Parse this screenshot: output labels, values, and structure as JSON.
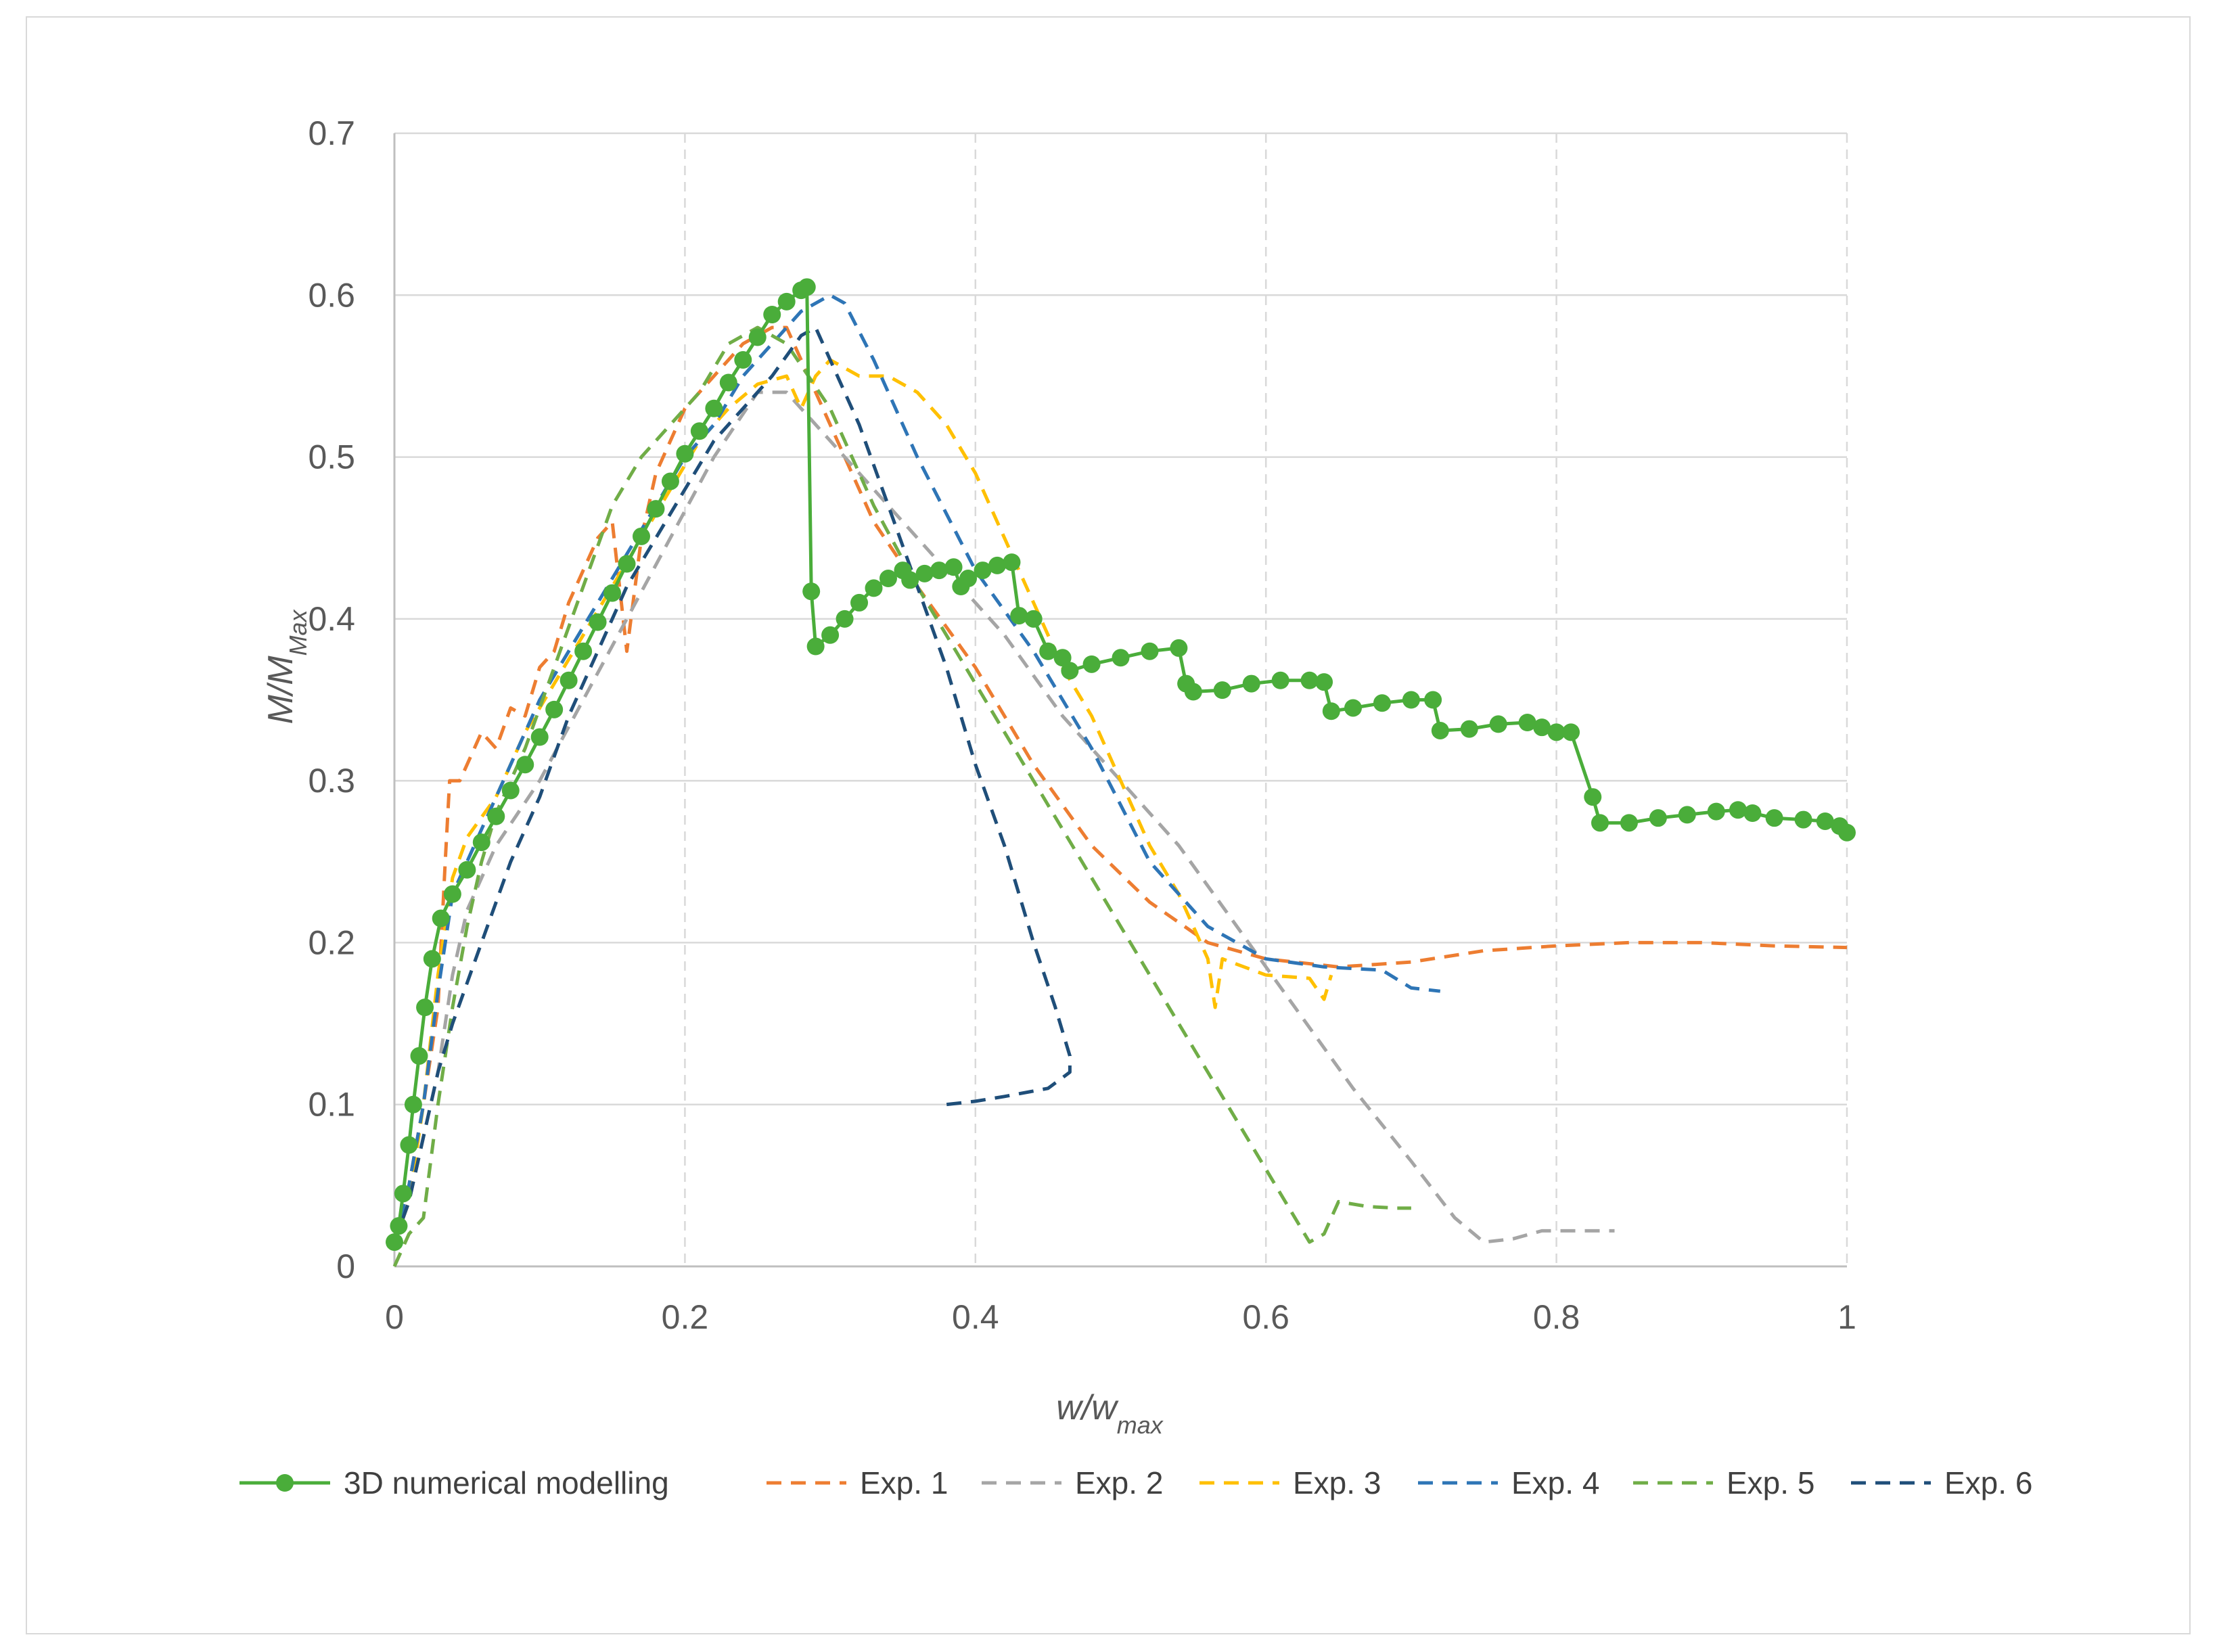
{
  "chart_data": {
    "type": "line",
    "title": "",
    "xlabel": {
      "main": "w/w",
      "sub": "max"
    },
    "ylabel": {
      "main": "M/M",
      "sub": "Max"
    },
    "xlim": [
      0,
      1
    ],
    "ylim": [
      0,
      0.7
    ],
    "x_ticks": [
      "0",
      "0.2",
      "0.4",
      "0.6",
      "0.8",
      "1"
    ],
    "y_ticks": [
      "0",
      "0.1",
      "0.2",
      "0.3",
      "0.4",
      "0.5",
      "0.6",
      "0.7"
    ],
    "grid": {
      "x": "dashed",
      "y": "solid"
    },
    "legend_position": "bottom",
    "series": [
      {
        "name": "3D numerical modelling",
        "color": "#4aad3a",
        "style": "solid-markers",
        "points": [
          [
            0.0,
            0.015
          ],
          [
            0.003,
            0.025
          ],
          [
            0.006,
            0.045
          ],
          [
            0.01,
            0.075
          ],
          [
            0.013,
            0.1
          ],
          [
            0.017,
            0.13
          ],
          [
            0.021,
            0.16
          ],
          [
            0.026,
            0.19
          ],
          [
            0.032,
            0.215
          ],
          [
            0.04,
            0.23
          ],
          [
            0.05,
            0.245
          ],
          [
            0.06,
            0.262
          ],
          [
            0.07,
            0.278
          ],
          [
            0.08,
            0.294
          ],
          [
            0.09,
            0.31
          ],
          [
            0.1,
            0.327
          ],
          [
            0.11,
            0.344
          ],
          [
            0.12,
            0.362
          ],
          [
            0.13,
            0.38
          ],
          [
            0.14,
            0.398
          ],
          [
            0.15,
            0.416
          ],
          [
            0.16,
            0.434
          ],
          [
            0.17,
            0.451
          ],
          [
            0.18,
            0.468
          ],
          [
            0.19,
            0.485
          ],
          [
            0.2,
            0.502
          ],
          [
            0.21,
            0.516
          ],
          [
            0.22,
            0.53
          ],
          [
            0.23,
            0.546
          ],
          [
            0.24,
            0.56
          ],
          [
            0.25,
            0.574
          ],
          [
            0.26,
            0.588
          ],
          [
            0.27,
            0.596
          ],
          [
            0.28,
            0.603
          ],
          [
            0.284,
            0.605
          ],
          [
            0.287,
            0.417
          ],
          [
            0.29,
            0.383
          ],
          [
            0.3,
            0.39
          ],
          [
            0.31,
            0.4
          ],
          [
            0.32,
            0.41
          ],
          [
            0.33,
            0.419
          ],
          [
            0.34,
            0.425
          ],
          [
            0.35,
            0.43
          ],
          [
            0.355,
            0.424
          ],
          [
            0.365,
            0.428
          ],
          [
            0.375,
            0.43
          ],
          [
            0.385,
            0.432
          ],
          [
            0.39,
            0.42
          ],
          [
            0.395,
            0.425
          ],
          [
            0.405,
            0.43
          ],
          [
            0.415,
            0.433
          ],
          [
            0.425,
            0.435
          ],
          [
            0.43,
            0.402
          ],
          [
            0.44,
            0.4
          ],
          [
            0.45,
            0.38
          ],
          [
            0.46,
            0.376
          ],
          [
            0.465,
            0.368
          ],
          [
            0.48,
            0.372
          ],
          [
            0.5,
            0.376
          ],
          [
            0.52,
            0.38
          ],
          [
            0.54,
            0.382
          ],
          [
            0.545,
            0.36
          ],
          [
            0.55,
            0.355
          ],
          [
            0.57,
            0.356
          ],
          [
            0.59,
            0.36
          ],
          [
            0.61,
            0.362
          ],
          [
            0.63,
            0.362
          ],
          [
            0.64,
            0.361
          ],
          [
            0.645,
            0.343
          ],
          [
            0.66,
            0.345
          ],
          [
            0.68,
            0.348
          ],
          [
            0.7,
            0.35
          ],
          [
            0.715,
            0.35
          ],
          [
            0.72,
            0.331
          ],
          [
            0.74,
            0.332
          ],
          [
            0.76,
            0.335
          ],
          [
            0.78,
            0.336
          ],
          [
            0.79,
            0.333
          ],
          [
            0.8,
            0.33
          ],
          [
            0.81,
            0.33
          ],
          [
            0.825,
            0.29
          ],
          [
            0.83,
            0.274
          ],
          [
            0.85,
            0.274
          ],
          [
            0.87,
            0.277
          ],
          [
            0.89,
            0.279
          ],
          [
            0.91,
            0.281
          ],
          [
            0.925,
            0.282
          ],
          [
            0.935,
            0.28
          ],
          [
            0.95,
            0.277
          ],
          [
            0.97,
            0.276
          ],
          [
            0.985,
            0.275
          ],
          [
            0.995,
            0.272
          ],
          [
            1.0,
            0.268
          ]
        ]
      },
      {
        "name": "Exp. 1",
        "color": "#ed7d31",
        "style": "dashed",
        "points": [
          [
            0.0,
            0.015
          ],
          [
            0.01,
            0.05
          ],
          [
            0.02,
            0.1
          ],
          [
            0.03,
            0.16
          ],
          [
            0.035,
            0.25
          ],
          [
            0.038,
            0.3
          ],
          [
            0.045,
            0.3
          ],
          [
            0.05,
            0.31
          ],
          [
            0.06,
            0.33
          ],
          [
            0.07,
            0.32
          ],
          [
            0.08,
            0.345
          ],
          [
            0.09,
            0.34
          ],
          [
            0.1,
            0.37
          ],
          [
            0.11,
            0.38
          ],
          [
            0.12,
            0.41
          ],
          [
            0.14,
            0.45
          ],
          [
            0.15,
            0.46
          ],
          [
            0.16,
            0.38
          ],
          [
            0.17,
            0.45
          ],
          [
            0.18,
            0.49
          ],
          [
            0.2,
            0.53
          ],
          [
            0.22,
            0.55
          ],
          [
            0.24,
            0.57
          ],
          [
            0.26,
            0.58
          ],
          [
            0.27,
            0.58
          ],
          [
            0.28,
            0.56
          ],
          [
            0.3,
            0.52
          ],
          [
            0.33,
            0.46
          ],
          [
            0.36,
            0.42
          ],
          [
            0.4,
            0.37
          ],
          [
            0.44,
            0.31
          ],
          [
            0.48,
            0.26
          ],
          [
            0.52,
            0.225
          ],
          [
            0.56,
            0.2
          ],
          [
            0.6,
            0.19
          ],
          [
            0.65,
            0.185
          ],
          [
            0.7,
            0.188
          ],
          [
            0.75,
            0.195
          ],
          [
            0.8,
            0.198
          ],
          [
            0.85,
            0.2
          ],
          [
            0.9,
            0.2
          ],
          [
            0.95,
            0.198
          ],
          [
            1.0,
            0.197
          ]
        ]
      },
      {
        "name": "Exp. 2",
        "color": "#a5a5a5",
        "style": "dashed",
        "points": [
          [
            0.0,
            0.015
          ],
          [
            0.01,
            0.04
          ],
          [
            0.02,
            0.08
          ],
          [
            0.03,
            0.12
          ],
          [
            0.04,
            0.18
          ],
          [
            0.05,
            0.22
          ],
          [
            0.07,
            0.26
          ],
          [
            0.1,
            0.3
          ],
          [
            0.13,
            0.35
          ],
          [
            0.16,
            0.4
          ],
          [
            0.19,
            0.45
          ],
          [
            0.22,
            0.5
          ],
          [
            0.25,
            0.54
          ],
          [
            0.27,
            0.54
          ],
          [
            0.3,
            0.51
          ],
          [
            0.34,
            0.47
          ],
          [
            0.38,
            0.43
          ],
          [
            0.42,
            0.39
          ],
          [
            0.46,
            0.34
          ],
          [
            0.5,
            0.3
          ],
          [
            0.54,
            0.26
          ],
          [
            0.58,
            0.21
          ],
          [
            0.62,
            0.16
          ],
          [
            0.66,
            0.11
          ],
          [
            0.7,
            0.065
          ],
          [
            0.73,
            0.03
          ],
          [
            0.75,
            0.015
          ],
          [
            0.77,
            0.017
          ],
          [
            0.79,
            0.022
          ],
          [
            0.81,
            0.022
          ],
          [
            0.84,
            0.022
          ]
        ]
      },
      {
        "name": "Exp. 3",
        "color": "#ffc000",
        "style": "dashed",
        "points": [
          [
            0.0,
            0.015
          ],
          [
            0.01,
            0.04
          ],
          [
            0.02,
            0.1
          ],
          [
            0.03,
            0.18
          ],
          [
            0.04,
            0.24
          ],
          [
            0.05,
            0.265
          ],
          [
            0.07,
            0.29
          ],
          [
            0.09,
            0.33
          ],
          [
            0.11,
            0.36
          ],
          [
            0.13,
            0.39
          ],
          [
            0.15,
            0.42
          ],
          [
            0.17,
            0.45
          ],
          [
            0.19,
            0.48
          ],
          [
            0.21,
            0.51
          ],
          [
            0.23,
            0.53
          ],
          [
            0.25,
            0.545
          ],
          [
            0.27,
            0.55
          ],
          [
            0.28,
            0.53
          ],
          [
            0.29,
            0.55
          ],
          [
            0.3,
            0.56
          ],
          [
            0.32,
            0.55
          ],
          [
            0.34,
            0.55
          ],
          [
            0.36,
            0.54
          ],
          [
            0.38,
            0.52
          ],
          [
            0.4,
            0.49
          ],
          [
            0.42,
            0.45
          ],
          [
            0.44,
            0.41
          ],
          [
            0.46,
            0.37
          ],
          [
            0.48,
            0.34
          ],
          [
            0.5,
            0.3
          ],
          [
            0.52,
            0.26
          ],
          [
            0.54,
            0.23
          ],
          [
            0.55,
            0.21
          ],
          [
            0.56,
            0.19
          ],
          [
            0.565,
            0.16
          ],
          [
            0.57,
            0.19
          ],
          [
            0.6,
            0.18
          ],
          [
            0.63,
            0.178
          ],
          [
            0.64,
            0.165
          ],
          [
            0.645,
            0.18
          ]
        ]
      },
      {
        "name": "Exp. 4",
        "color": "#2e75b6",
        "style": "dashed",
        "points": [
          [
            0.0,
            0.015
          ],
          [
            0.01,
            0.05
          ],
          [
            0.02,
            0.1
          ],
          [
            0.03,
            0.17
          ],
          [
            0.04,
            0.23
          ],
          [
            0.06,
            0.27
          ],
          [
            0.08,
            0.31
          ],
          [
            0.1,
            0.35
          ],
          [
            0.12,
            0.38
          ],
          [
            0.14,
            0.41
          ],
          [
            0.16,
            0.44
          ],
          [
            0.18,
            0.47
          ],
          [
            0.2,
            0.5
          ],
          [
            0.22,
            0.52
          ],
          [
            0.24,
            0.55
          ],
          [
            0.26,
            0.57
          ],
          [
            0.28,
            0.59
          ],
          [
            0.3,
            0.6
          ],
          [
            0.31,
            0.595
          ],
          [
            0.33,
            0.56
          ],
          [
            0.36,
            0.5
          ],
          [
            0.4,
            0.43
          ],
          [
            0.44,
            0.38
          ],
          [
            0.48,
            0.32
          ],
          [
            0.52,
            0.25
          ],
          [
            0.56,
            0.21
          ],
          [
            0.6,
            0.19
          ],
          [
            0.64,
            0.185
          ],
          [
            0.68,
            0.183
          ],
          [
            0.7,
            0.172
          ],
          [
            0.72,
            0.17
          ]
        ]
      },
      {
        "name": "Exp. 5",
        "color": "#70ad47",
        "style": "dashed",
        "points": [
          [
            0.0,
            0.0
          ],
          [
            0.01,
            0.02
          ],
          [
            0.02,
            0.03
          ],
          [
            0.03,
            0.1
          ],
          [
            0.04,
            0.16
          ],
          [
            0.05,
            0.21
          ],
          [
            0.06,
            0.25
          ],
          [
            0.07,
            0.28
          ],
          [
            0.09,
            0.32
          ],
          [
            0.11,
            0.37
          ],
          [
            0.13,
            0.42
          ],
          [
            0.15,
            0.47
          ],
          [
            0.17,
            0.5
          ],
          [
            0.19,
            0.52
          ],
          [
            0.21,
            0.54
          ],
          [
            0.23,
            0.57
          ],
          [
            0.25,
            0.58
          ],
          [
            0.27,
            0.57
          ],
          [
            0.3,
            0.53
          ],
          [
            0.33,
            0.47
          ],
          [
            0.36,
            0.42
          ],
          [
            0.4,
            0.36
          ],
          [
            0.44,
            0.3
          ],
          [
            0.48,
            0.24
          ],
          [
            0.52,
            0.18
          ],
          [
            0.56,
            0.12
          ],
          [
            0.6,
            0.06
          ],
          [
            0.62,
            0.03
          ],
          [
            0.63,
            0.015
          ],
          [
            0.64,
            0.02
          ],
          [
            0.65,
            0.04
          ],
          [
            0.67,
            0.037
          ],
          [
            0.69,
            0.036
          ],
          [
            0.7,
            0.036
          ]
        ]
      },
      {
        "name": "Exp. 6",
        "color": "#1f4e79",
        "style": "dashed",
        "points": [
          [
            0.0,
            0.015
          ],
          [
            0.01,
            0.04
          ],
          [
            0.02,
            0.08
          ],
          [
            0.03,
            0.12
          ],
          [
            0.04,
            0.15
          ],
          [
            0.06,
            0.2
          ],
          [
            0.08,
            0.25
          ],
          [
            0.1,
            0.29
          ],
          [
            0.12,
            0.34
          ],
          [
            0.14,
            0.38
          ],
          [
            0.16,
            0.42
          ],
          [
            0.18,
            0.45
          ],
          [
            0.2,
            0.48
          ],
          [
            0.22,
            0.51
          ],
          [
            0.24,
            0.53
          ],
          [
            0.26,
            0.55
          ],
          [
            0.28,
            0.575
          ],
          [
            0.29,
            0.58
          ],
          [
            0.3,
            0.56
          ],
          [
            0.32,
            0.52
          ],
          [
            0.34,
            0.47
          ],
          [
            0.36,
            0.42
          ],
          [
            0.38,
            0.37
          ],
          [
            0.4,
            0.31
          ],
          [
            0.42,
            0.26
          ],
          [
            0.44,
            0.2
          ],
          [
            0.455,
            0.16
          ],
          [
            0.465,
            0.13
          ],
          [
            0.465,
            0.12
          ],
          [
            0.45,
            0.11
          ],
          [
            0.42,
            0.105
          ],
          [
            0.4,
            0.102
          ],
          [
            0.38,
            0.1
          ]
        ]
      }
    ]
  }
}
